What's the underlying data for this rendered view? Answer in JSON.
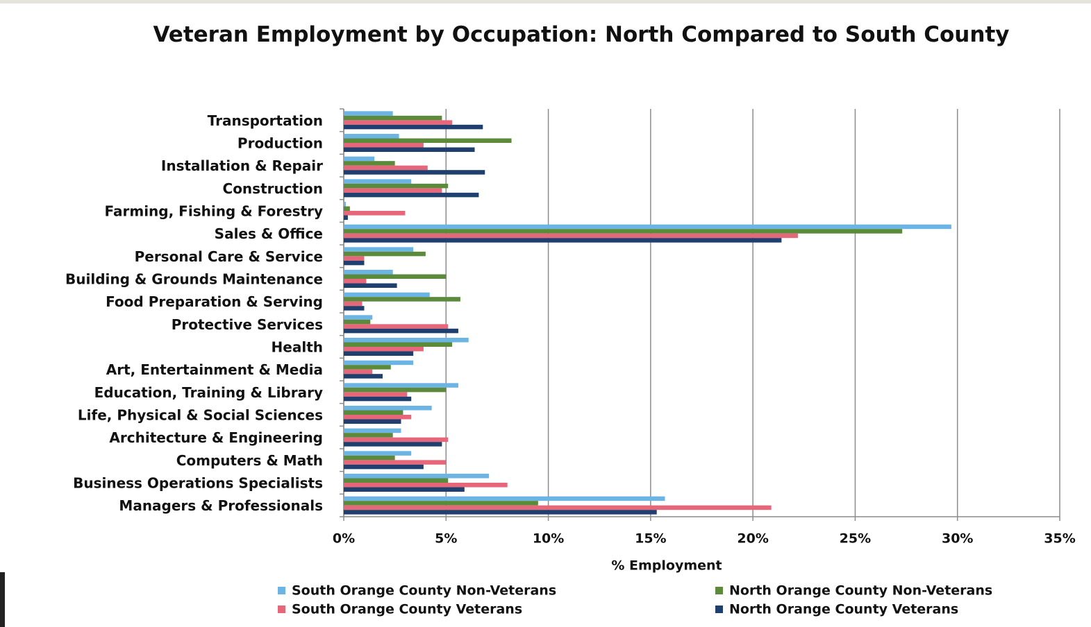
{
  "chart_data": {
    "type": "bar",
    "orientation": "horizontal",
    "title": "Veteran Employment by Occupation: North Compared to South County",
    "x_label": "% Employment",
    "categories": [
      "Transportation",
      "Production",
      "Installation & Repair",
      "Construction",
      "Farming, Fishing & Forestry",
      "Sales & Office",
      "Personal Care & Service",
      "Building & Grounds Maintenance",
      "Food Preparation & Serving",
      "Protective Services",
      "Health",
      "Art, Entertainment & Media",
      "Education, Training & Library",
      "Life, Physical & Social Sciences",
      "Architecture & Engineering",
      "Computers & Math",
      "Business Operations Specialists",
      "Managers & Professionals"
    ],
    "series": [
      {
        "name": "South Orange County Non-Veterans",
        "color": "#6cb4e4",
        "values": [
          2.4,
          2.7,
          1.5,
          3.3,
          0.1,
          29.7,
          3.4,
          2.4,
          4.2,
          1.4,
          6.1,
          3.4,
          5.6,
          4.3,
          2.8,
          3.3,
          7.1,
          15.7
        ]
      },
      {
        "name": "North Orange County Non-Veterans",
        "color": "#5a8a3a",
        "values": [
          4.8,
          8.2,
          2.5,
          5.1,
          0.3,
          27.3,
          4.0,
          5.0,
          5.7,
          1.3,
          5.3,
          2.3,
          5.0,
          2.9,
          2.4,
          2.5,
          5.1,
          9.5
        ]
      },
      {
        "name": "South Orange County Veterans",
        "color": "#e8667a",
        "values": [
          5.3,
          3.9,
          4.1,
          4.8,
          3.0,
          22.2,
          1.0,
          1.1,
          0.9,
          5.1,
          3.9,
          1.4,
          3.1,
          3.3,
          5.1,
          5.0,
          8.0,
          20.9
        ]
      },
      {
        "name": "North Orange County Veterans",
        "color": "#1f3f6e",
        "values": [
          6.8,
          6.4,
          6.9,
          6.6,
          0.2,
          21.4,
          1.0,
          2.6,
          1.0,
          5.6,
          3.4,
          1.9,
          3.3,
          2.8,
          4.8,
          3.9,
          5.9,
          15.3
        ]
      }
    ],
    "xlim": [
      0,
      35
    ],
    "xticks": [
      {
        "value": 0,
        "label": "0%"
      },
      {
        "value": 5,
        "label": "5%"
      },
      {
        "value": 10,
        "label": "10%"
      },
      {
        "value": 15,
        "label": "15%"
      },
      {
        "value": 20,
        "label": "20%"
      },
      {
        "value": 25,
        "label": "25%"
      },
      {
        "value": 30,
        "label": "30%"
      },
      {
        "value": 35,
        "label": "35%"
      }
    ],
    "grid": true,
    "legend": "bottom"
  }
}
